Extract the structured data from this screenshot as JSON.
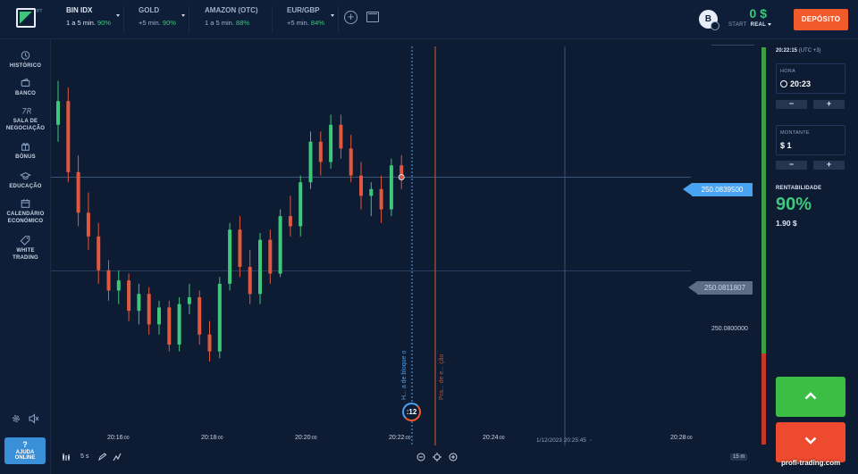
{
  "top": {
    "logo_sup": "PT",
    "assets": [
      {
        "name": "BIN IDX",
        "timing": "1 a 5 min.",
        "pct": "90%"
      },
      {
        "name": "GOLD",
        "timing": "+5 min.",
        "pct": "90%"
      },
      {
        "name": "AMAZON (OTC)",
        "timing": "1 a 5 min.",
        "pct": "88%"
      },
      {
        "name": "EUR/GBP",
        "timing": "+5 min.",
        "pct": "84%"
      }
    ],
    "coin_letter": "B",
    "balance": "0 $",
    "mode_start": "START",
    "mode_real": "REAL",
    "deposit_label": "DEPÓSITO"
  },
  "sidebar": {
    "items": [
      {
        "label": "HISTÓRICO"
      },
      {
        "label": "BANCO"
      },
      {
        "label": "SALA DE NEGOCIAÇÃO"
      },
      {
        "label": "BÓNUS"
      },
      {
        "label": "EDUCAÇÃO"
      },
      {
        "label": "CALENDÁRIO ECONÓMICO"
      },
      {
        "label": "WHITE TRADING"
      }
    ],
    "help_q": "?",
    "help_label": "AJUDA ONLINE"
  },
  "chart": {
    "current_price": "250.0839500",
    "low_price": "250.0811807",
    "plain_price": "250.0800000",
    "time_ticks": [
      {
        "t": "20:16",
        "s": ":00"
      },
      {
        "t": "20:18",
        "s": ":00"
      },
      {
        "t": "20:20",
        "s": ":00"
      },
      {
        "t": "20:22",
        "s": ":00"
      },
      {
        "t": "20:24",
        "s": ":00"
      },
      {
        "t": "20:28",
        "s": ":00"
      }
    ],
    "date_label": "1/12/2023 20:25:45",
    "buy_line_label": "H... a de bloque o",
    "expiry_line_label": "Pra... de e... ção",
    "countdown": ":12",
    "timeframe_btn": "5 s",
    "candle_period": "15 m"
  },
  "chart_data": {
    "type": "candlestick",
    "candles": [
      [
        250.0855,
        250.0868,
        250.085,
        250.0862
      ],
      [
        250.0862,
        250.0866,
        250.0838,
        250.0841
      ],
      [
        250.0841,
        250.0846,
        250.0825,
        250.0829
      ],
      [
        250.0829,
        250.0835,
        250.0818,
        250.0822
      ],
      [
        250.0822,
        250.0826,
        250.0808,
        250.0812
      ],
      [
        250.0812,
        250.0815,
        250.0803,
        250.0806
      ],
      [
        250.0806,
        250.0812,
        250.0802,
        250.0809
      ],
      [
        250.0809,
        250.0811,
        250.0797,
        250.08
      ],
      [
        250.08,
        250.0808,
        250.0796,
        250.0805
      ],
      [
        250.0805,
        250.0807,
        250.0793,
        250.0796
      ],
      [
        250.0796,
        250.0803,
        250.0793,
        250.0801
      ],
      [
        250.0801,
        250.0803,
        250.0788,
        250.079
      ],
      [
        250.079,
        250.0804,
        250.0788,
        250.0802
      ],
      [
        250.0802,
        250.0808,
        250.0799,
        250.0804
      ],
      [
        250.0804,
        250.0806,
        250.079,
        250.0793
      ],
      [
        250.0793,
        250.0797,
        250.0785,
        250.0788
      ],
      [
        250.0788,
        250.081,
        250.0786,
        250.0808
      ],
      [
        250.0808,
        250.0826,
        250.0806,
        250.0824
      ],
      [
        250.0824,
        250.0828,
        250.081,
        250.0813
      ],
      [
        250.0813,
        250.0818,
        250.0802,
        250.0805
      ],
      [
        250.0805,
        250.0823,
        250.0802,
        250.0821
      ],
      [
        250.0821,
        250.0824,
        250.0808,
        250.0811
      ],
      [
        250.0811,
        250.083,
        250.081,
        250.0828
      ],
      [
        250.0828,
        250.0834,
        250.0822,
        250.0825
      ],
      [
        250.0825,
        250.084,
        250.0822,
        250.0838
      ],
      [
        250.0838,
        250.0853,
        250.0836,
        250.085
      ],
      [
        250.085,
        250.0853,
        250.084,
        250.0844
      ],
      [
        250.0844,
        250.0858,
        250.0842,
        250.0855
      ],
      [
        250.0855,
        250.0858,
        250.0845,
        250.0848
      ],
      [
        250.0848,
        250.0852,
        250.0838,
        250.084
      ],
      [
        250.084,
        250.0844,
        250.083,
        250.0834
      ],
      [
        250.0834,
        250.0838,
        250.0828,
        250.0836
      ],
      [
        250.0836,
        250.084,
        250.0826,
        250.083
      ],
      [
        250.083,
        250.0845,
        250.0828,
        250.0843
      ],
      [
        250.0843,
        250.0846,
        250.0836,
        250.0839
      ]
    ]
  },
  "panel": {
    "clock": "20:22:15",
    "tz": "(UTC +3)",
    "hora_label": "HORA",
    "hora_value": "20:23",
    "montante_label": "MONTANTE",
    "montante_value": "$ 1",
    "minus": "−",
    "plus": "+",
    "profit_label": "RENTABILIDADE",
    "profit_pct": "90%",
    "profit_value": "1.90 $",
    "sentiment_up": 0.77
  },
  "watermark": "profi-trading.com",
  "colors": {
    "background": "#0d1b33",
    "bull": "#3cc77a",
    "bear": "#e2583e",
    "accent_blue": "#4aa3f0",
    "deposit": "#f15a2b",
    "up_button": "#3cbe45",
    "down_button": "#ee4a2f"
  }
}
